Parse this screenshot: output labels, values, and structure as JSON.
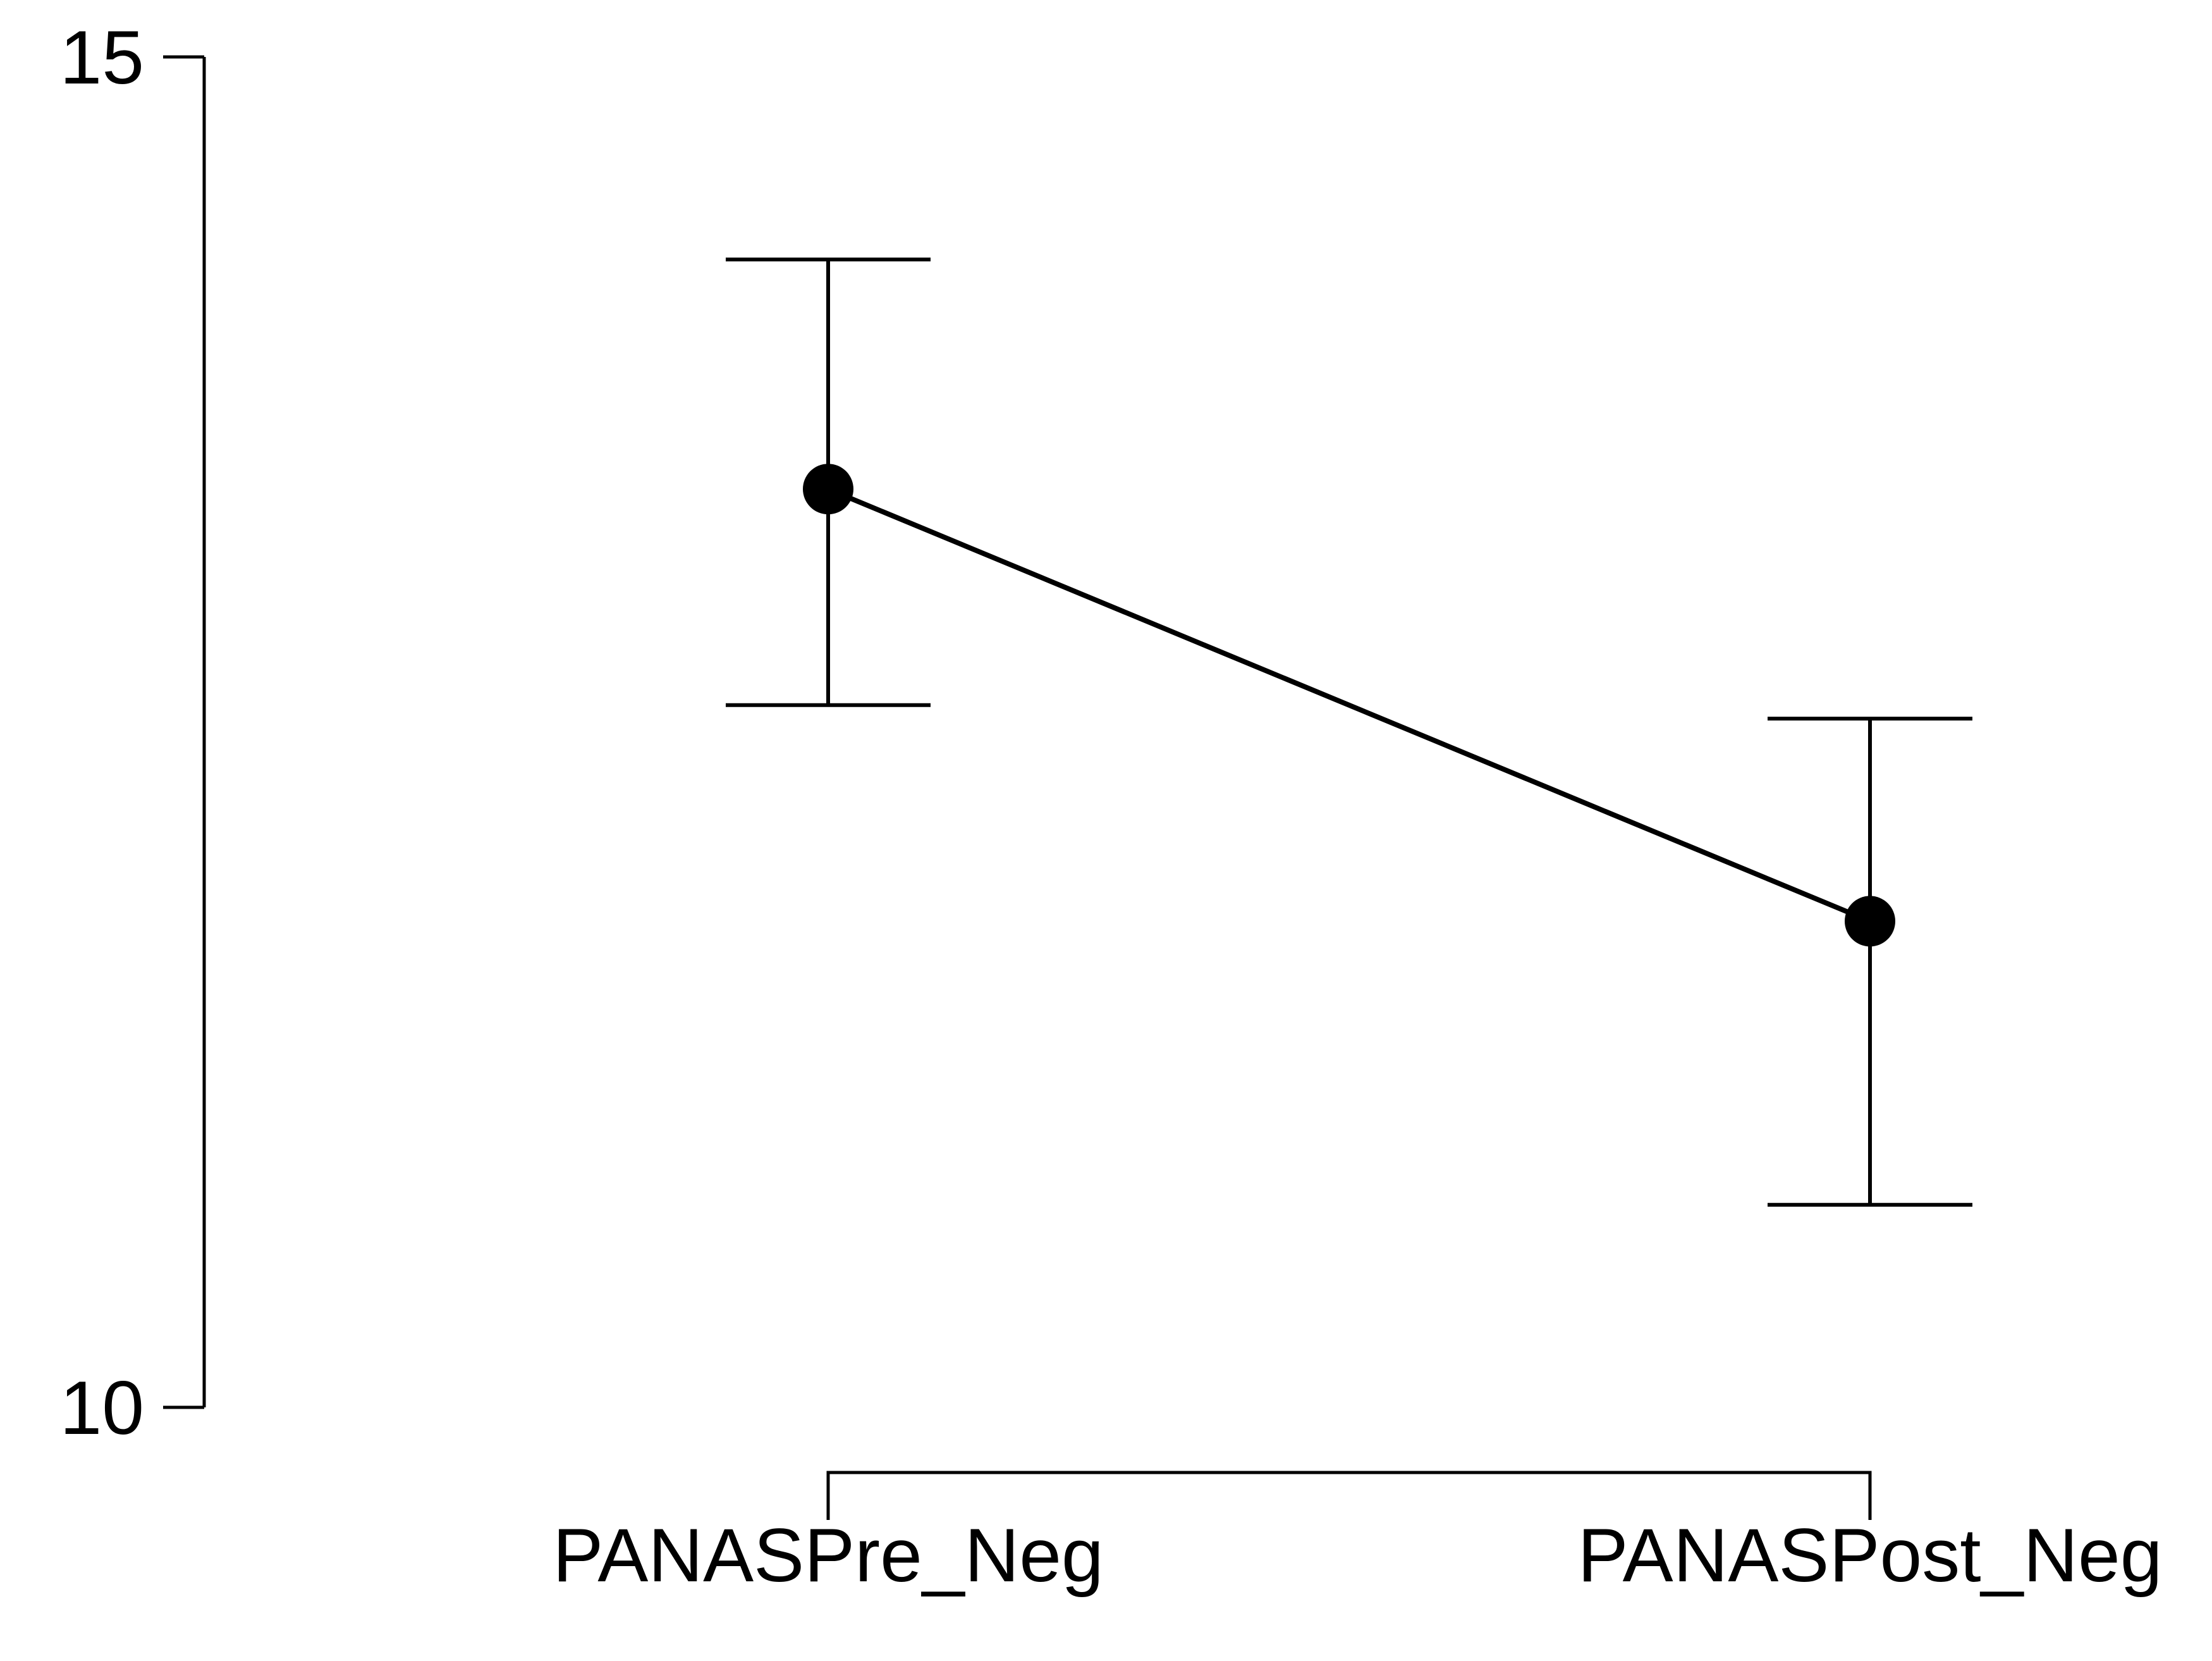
{
  "chart_data": {
    "type": "line",
    "title": "",
    "xlabel": "",
    "ylabel": "",
    "categories": [
      "PANASPre_Neg",
      "PANASPost_Neg"
    ],
    "series": [
      {
        "values": [
          13.4,
          11.8
        ],
        "ci_lower": [
          12.6,
          10.75
        ],
        "ci_upper": [
          14.25,
          12.55
        ]
      }
    ],
    "ylim": [
      10,
      15
    ],
    "yticks": [
      "10",
      "15"
    ],
    "grid": false,
    "legend": "none",
    "colors": {
      "line": "#000000",
      "point": "#000000",
      "axis": "#000000",
      "background": "#ffffff"
    }
  }
}
